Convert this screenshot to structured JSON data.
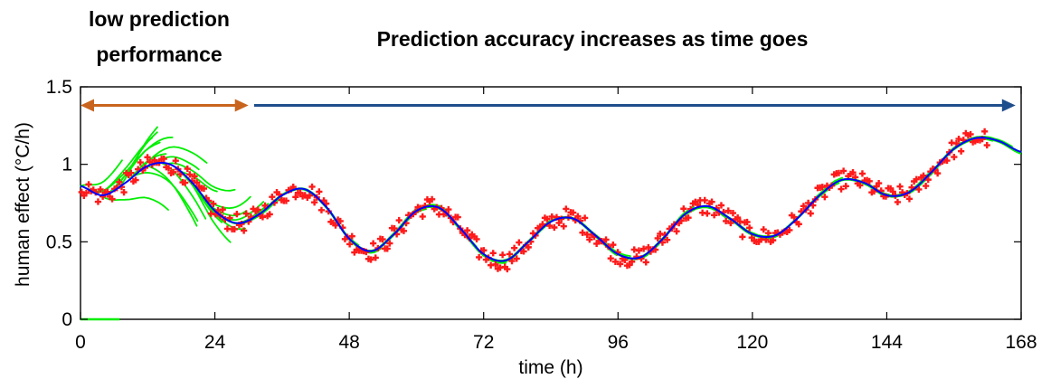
{
  "chart_data": {
    "type": "line",
    "annotations": {
      "left_label": [
        "low prediction",
        "performance"
      ],
      "right_label": "Prediction accuracy increases as time goes"
    },
    "xlabel": "time (h)",
    "ylabel": "human effect (°C/h)",
    "xlim": [
      0,
      168
    ],
    "ylim": [
      0,
      1.5
    ],
    "xticks": [
      0,
      24,
      48,
      72,
      96,
      120,
      144,
      168
    ],
    "xtick_labels": [
      "0",
      "24",
      "48",
      "72",
      "96",
      "120",
      "144",
      "168"
    ],
    "yticks": [
      0,
      0.5,
      1,
      1.5
    ],
    "ytick_labels": [
      "0",
      "0.5",
      "1",
      "1.5"
    ],
    "grid": false,
    "arrows": [
      {
        "from_x": 0,
        "to_x": 30,
        "y": 1.38,
        "color": "#c8641e",
        "direction": "both"
      },
      {
        "from_x": 31,
        "to_x": 167,
        "y": 1.38,
        "color": "#1f4e8c",
        "direction": "right"
      }
    ],
    "series": [
      {
        "color": "#0000ff",
        "x": [
          0,
          4,
          8,
          12,
          16,
          20,
          24,
          28,
          32,
          36,
          40,
          44,
          48,
          52,
          56,
          60,
          64,
          68,
          72,
          76,
          80,
          84,
          88,
          92,
          96,
          100,
          104,
          108,
          112,
          116,
          120,
          124,
          128,
          132,
          136,
          140,
          144,
          148,
          152,
          156,
          160,
          164,
          168
        ],
        "values": [
          0.86,
          0.8,
          0.88,
          0.99,
          1.0,
          0.88,
          0.7,
          0.62,
          0.68,
          0.8,
          0.84,
          0.72,
          0.52,
          0.44,
          0.55,
          0.7,
          0.72,
          0.58,
          0.42,
          0.38,
          0.5,
          0.63,
          0.65,
          0.54,
          0.42,
          0.4,
          0.52,
          0.68,
          0.73,
          0.65,
          0.55,
          0.54,
          0.65,
          0.8,
          0.9,
          0.88,
          0.8,
          0.82,
          0.95,
          1.1,
          1.17,
          1.15,
          1.08
        ]
      }
    ],
    "forecast_color": "#00ee00",
    "observation_color": "#ff1a1a",
    "observation_marker": "+",
    "baseline": {
      "x": [
        0,
        7
      ],
      "y": 0,
      "color": "#00ee00"
    }
  }
}
